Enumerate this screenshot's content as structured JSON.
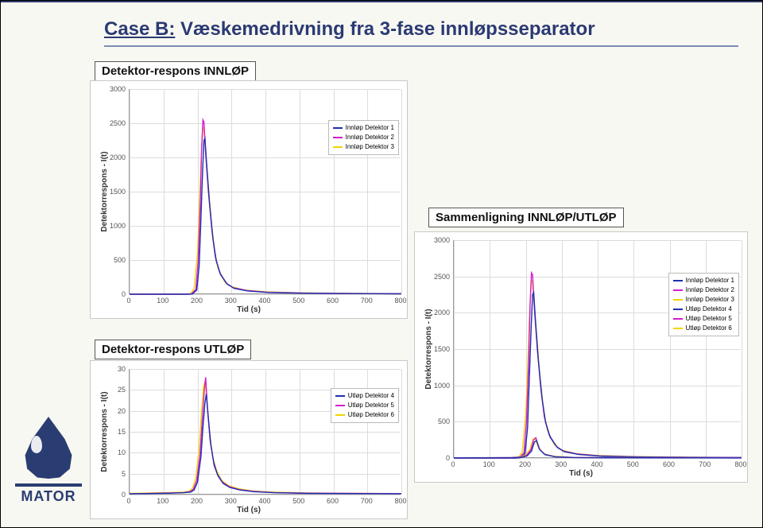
{
  "title": {
    "case_label": "Case B:",
    "rest": " Væskemedrivning fra 3-fase innløpsseparator"
  },
  "labels": {
    "innlop": "Detektor-respons INNLØP",
    "utlop": "Detektor-respons UTLØP",
    "compare": "Sammenligning INNLØP/UTLØP"
  },
  "logo": {
    "text": "MATOR"
  },
  "colors": {
    "det1": "#1f2fb0",
    "det2": "#d41ccf",
    "det3": "#f2d500",
    "det4": "#1f2fb0",
    "det5": "#d41ccf",
    "det6": "#f2d500",
    "grid": "#dcdcdc",
    "axis": "#999999",
    "bg": "#ffffff"
  },
  "legend_labels": {
    "in1": "Innløp Detektor 1",
    "in2": "Innløp Detektor 2",
    "in3": "Innløp Detektor 3",
    "ut4": "Utløp Detektor 4",
    "ut5": "Utløp Detektor 5",
    "ut6": "Utløp Detektor 6"
  },
  "common_axes": {
    "xlabel": "Tid (s)",
    "ylabel": "Detektorrespons - I(t)",
    "xlim": [
      0,
      800
    ],
    "xticks": [
      0,
      100,
      200,
      300,
      400,
      500,
      600,
      700,
      800
    ]
  },
  "chart_innlop": {
    "type": "line",
    "ylim": [
      0,
      3000
    ],
    "yticks": [
      0,
      500,
      1000,
      1500,
      2000,
      2500,
      3000
    ],
    "series": [
      {
        "name": "det3",
        "points": [
          [
            0,
            0
          ],
          [
            170,
            0
          ],
          [
            180,
            10
          ],
          [
            190,
            80
          ],
          [
            200,
            600
          ],
          [
            205,
            1200
          ],
          [
            210,
            1900
          ],
          [
            215,
            2400
          ],
          [
            218,
            2450
          ],
          [
            222,
            2200
          ],
          [
            230,
            1700
          ],
          [
            240,
            1100
          ],
          [
            250,
            650
          ],
          [
            260,
            380
          ],
          [
            280,
            180
          ],
          [
            300,
            110
          ],
          [
            340,
            60
          ],
          [
            400,
            35
          ],
          [
            500,
            20
          ],
          [
            600,
            14
          ],
          [
            700,
            10
          ],
          [
            800,
            8
          ]
        ]
      },
      {
        "name": "det2",
        "points": [
          [
            0,
            0
          ],
          [
            170,
            0
          ],
          [
            182,
            5
          ],
          [
            195,
            70
          ],
          [
            202,
            500
          ],
          [
            208,
            1300
          ],
          [
            212,
            2100
          ],
          [
            216,
            2550
          ],
          [
            219,
            2520
          ],
          [
            224,
            2050
          ],
          [
            232,
            1500
          ],
          [
            242,
            950
          ],
          [
            252,
            560
          ],
          [
            265,
            320
          ],
          [
            285,
            160
          ],
          [
            305,
            95
          ],
          [
            345,
            55
          ],
          [
            405,
            30
          ],
          [
            505,
            18
          ],
          [
            605,
            12
          ],
          [
            705,
            9
          ],
          [
            800,
            7
          ]
        ]
      },
      {
        "name": "det1",
        "points": [
          [
            0,
            0
          ],
          [
            170,
            0
          ],
          [
            185,
            4
          ],
          [
            198,
            60
          ],
          [
            205,
            420
          ],
          [
            210,
            1100
          ],
          [
            215,
            1800
          ],
          [
            219,
            2250
          ],
          [
            222,
            2280
          ],
          [
            227,
            1900
          ],
          [
            235,
            1350
          ],
          [
            245,
            830
          ],
          [
            255,
            490
          ],
          [
            268,
            285
          ],
          [
            288,
            145
          ],
          [
            308,
            85
          ],
          [
            348,
            48
          ],
          [
            408,
            26
          ],
          [
            508,
            15
          ],
          [
            608,
            10
          ],
          [
            708,
            8
          ],
          [
            800,
            6
          ]
        ]
      }
    ]
  },
  "chart_utlop": {
    "type": "line",
    "ylim": [
      0,
      30
    ],
    "yticks": [
      0,
      5,
      10,
      15,
      20,
      25,
      30
    ],
    "series": [
      {
        "name": "det6",
        "points": [
          [
            0,
            0.3
          ],
          [
            60,
            0.4
          ],
          [
            120,
            0.5
          ],
          [
            160,
            0.6
          ],
          [
            175,
            0.8
          ],
          [
            185,
            1.5
          ],
          [
            195,
            4
          ],
          [
            205,
            11
          ],
          [
            212,
            20
          ],
          [
            218,
            26
          ],
          [
            222,
            27
          ],
          [
            227,
            23
          ],
          [
            235,
            15
          ],
          [
            245,
            9
          ],
          [
            255,
            6
          ],
          [
            270,
            3.5
          ],
          [
            290,
            2.2
          ],
          [
            320,
            1.4
          ],
          [
            360,
            0.9
          ],
          [
            420,
            0.6
          ],
          [
            520,
            0.4
          ],
          [
            650,
            0.3
          ],
          [
            800,
            0.25
          ]
        ]
      },
      {
        "name": "det5",
        "points": [
          [
            0,
            0.2
          ],
          [
            60,
            0.3
          ],
          [
            120,
            0.4
          ],
          [
            160,
            0.5
          ],
          [
            178,
            0.7
          ],
          [
            188,
            1.3
          ],
          [
            198,
            3.5
          ],
          [
            208,
            10
          ],
          [
            214,
            18
          ],
          [
            220,
            25
          ],
          [
            224,
            28
          ],
          [
            229,
            21
          ],
          [
            237,
            13
          ],
          [
            247,
            8
          ],
          [
            258,
            5
          ],
          [
            273,
            3
          ],
          [
            293,
            1.9
          ],
          [
            323,
            1.2
          ],
          [
            363,
            0.8
          ],
          [
            423,
            0.5
          ],
          [
            523,
            0.35
          ],
          [
            653,
            0.28
          ],
          [
            800,
            0.22
          ]
        ]
      },
      {
        "name": "det4",
        "points": [
          [
            0,
            0.2
          ],
          [
            60,
            0.25
          ],
          [
            120,
            0.35
          ],
          [
            160,
            0.45
          ],
          [
            180,
            0.6
          ],
          [
            190,
            1.1
          ],
          [
            200,
            3
          ],
          [
            210,
            9
          ],
          [
            216,
            16
          ],
          [
            222,
            22
          ],
          [
            226,
            24
          ],
          [
            231,
            19
          ],
          [
            239,
            12
          ],
          [
            249,
            7
          ],
          [
            260,
            4.5
          ],
          [
            275,
            2.7
          ],
          [
            295,
            1.7
          ],
          [
            325,
            1.1
          ],
          [
            365,
            0.7
          ],
          [
            425,
            0.45
          ],
          [
            525,
            0.3
          ],
          [
            655,
            0.24
          ],
          [
            800,
            0.2
          ]
        ]
      }
    ]
  },
  "chart_compare": {
    "type": "line",
    "ylim": [
      0,
      3000
    ],
    "yticks": [
      0,
      500,
      1000,
      1500,
      2000,
      2500,
      3000
    ],
    "series": [
      {
        "name": "det3",
        "points": [
          [
            0,
            0
          ],
          [
            170,
            0
          ],
          [
            180,
            10
          ],
          [
            190,
            80
          ],
          [
            200,
            600
          ],
          [
            205,
            1200
          ],
          [
            210,
            1900
          ],
          [
            215,
            2400
          ],
          [
            218,
            2450
          ],
          [
            222,
            2200
          ],
          [
            230,
            1700
          ],
          [
            240,
            1100
          ],
          [
            250,
            650
          ],
          [
            260,
            380
          ],
          [
            280,
            180
          ],
          [
            300,
            110
          ],
          [
            340,
            60
          ],
          [
            400,
            35
          ],
          [
            500,
            20
          ],
          [
            600,
            14
          ],
          [
            700,
            10
          ],
          [
            800,
            8
          ]
        ]
      },
      {
        "name": "det2",
        "points": [
          [
            0,
            0
          ],
          [
            170,
            0
          ],
          [
            182,
            5
          ],
          [
            195,
            70
          ],
          [
            202,
            500
          ],
          [
            208,
            1300
          ],
          [
            212,
            2100
          ],
          [
            216,
            2550
          ],
          [
            219,
            2520
          ],
          [
            224,
            2050
          ],
          [
            232,
            1500
          ],
          [
            242,
            950
          ],
          [
            252,
            560
          ],
          [
            265,
            320
          ],
          [
            285,
            160
          ],
          [
            305,
            95
          ],
          [
            345,
            55
          ],
          [
            405,
            30
          ],
          [
            505,
            18
          ],
          [
            605,
            12
          ],
          [
            705,
            9
          ],
          [
            800,
            7
          ]
        ]
      },
      {
        "name": "det1",
        "points": [
          [
            0,
            0
          ],
          [
            170,
            0
          ],
          [
            185,
            4
          ],
          [
            198,
            60
          ],
          [
            205,
            420
          ],
          [
            210,
            1100
          ],
          [
            215,
            1800
          ],
          [
            219,
            2250
          ],
          [
            222,
            2280
          ],
          [
            227,
            1900
          ],
          [
            235,
            1350
          ],
          [
            245,
            830
          ],
          [
            255,
            490
          ],
          [
            268,
            285
          ],
          [
            288,
            145
          ],
          [
            308,
            85
          ],
          [
            348,
            48
          ],
          [
            408,
            26
          ],
          [
            508,
            15
          ],
          [
            608,
            10
          ],
          [
            708,
            8
          ],
          [
            800,
            6
          ]
        ]
      },
      {
        "name": "det6",
        "points": [
          [
            0,
            3
          ],
          [
            160,
            6
          ],
          [
            185,
            15
          ],
          [
            200,
            40
          ],
          [
            212,
            120
          ],
          [
            220,
            260
          ],
          [
            226,
            270
          ],
          [
            235,
            150
          ],
          [
            250,
            60
          ],
          [
            280,
            22
          ],
          [
            330,
            9
          ],
          [
            450,
            5
          ],
          [
            800,
            2
          ]
        ]
      },
      {
        "name": "det5",
        "points": [
          [
            0,
            2
          ],
          [
            160,
            5
          ],
          [
            188,
            13
          ],
          [
            202,
            35
          ],
          [
            214,
            110
          ],
          [
            222,
            250
          ],
          [
            228,
            280
          ],
          [
            237,
            130
          ],
          [
            252,
            52
          ],
          [
            282,
            18
          ],
          [
            332,
            8
          ],
          [
            452,
            4
          ],
          [
            800,
            2
          ]
        ]
      },
      {
        "name": "det4",
        "points": [
          [
            0,
            2
          ],
          [
            160,
            4
          ],
          [
            190,
            11
          ],
          [
            204,
            30
          ],
          [
            216,
            95
          ],
          [
            224,
            220
          ],
          [
            230,
            240
          ],
          [
            239,
            115
          ],
          [
            254,
            46
          ],
          [
            284,
            16
          ],
          [
            334,
            7
          ],
          [
            454,
            3
          ],
          [
            800,
            1.5
          ]
        ]
      }
    ]
  }
}
